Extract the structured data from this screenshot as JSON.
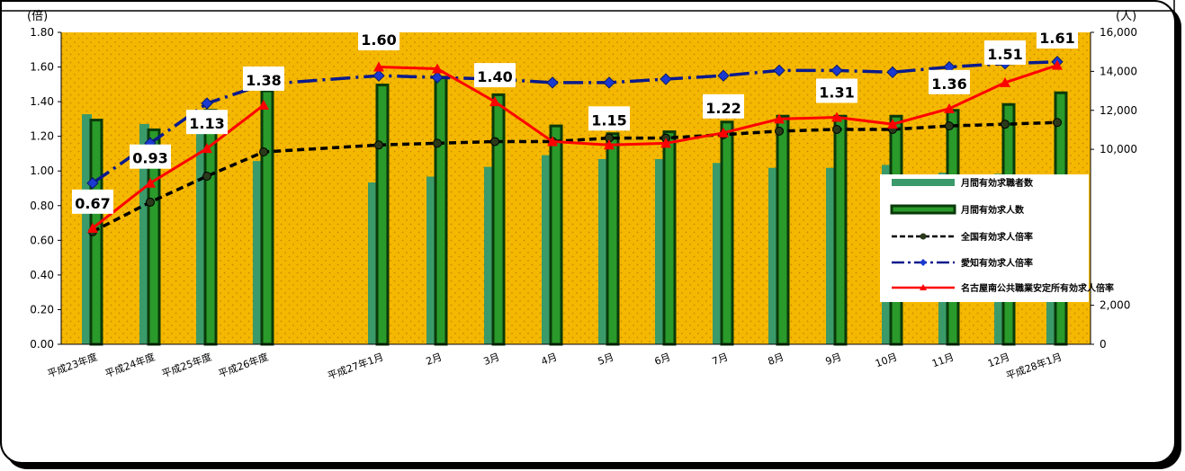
{
  "chart_data": {
    "type": "bar",
    "title": "",
    "left_axis": {
      "unit_label": "(倍)",
      "ylim": [
        0,
        1.8
      ],
      "ticks": [
        "0.00",
        "0.20",
        "0.40",
        "0.60",
        "0.80",
        "1.00",
        "1.20",
        "1.40",
        "1.60",
        "1.80"
      ]
    },
    "right_axis": {
      "unit_label": "(人)",
      "ylim": [
        0,
        16000
      ],
      "ticks": [
        "0",
        "2,000",
        "10,000",
        "12,000",
        "14,000",
        "16,000"
      ]
    },
    "categories": [
      "平成23年度",
      "平成24年度",
      "平成25年度",
      "平成26年度",
      "平成27年1月",
      "2月",
      "3月",
      "4月",
      "5月",
      "6月",
      "7月",
      "8月",
      "9月",
      "10月",
      "11月",
      "12月",
      "平成28年1月"
    ],
    "series": [
      {
        "name": "月間有効求職者数",
        "kind": "bar",
        "axis": "right",
        "color": "#3a9a6a",
        "values": [
          11800,
          11300,
          10800,
          9400,
          8300,
          8600,
          9100,
          9700,
          9500,
          9500,
          9300,
          9050,
          9050,
          9200,
          8800,
          8750,
          8700
        ]
      },
      {
        "name": "月間有効求人数",
        "kind": "bar",
        "axis": "right",
        "color": "#0a3a0a",
        "values": [
          11500,
          11000,
          12000,
          13000,
          13300,
          13700,
          12800,
          11200,
          10800,
          10900,
          11400,
          11700,
          11700,
          11700,
          12000,
          12300,
          12900
        ]
      },
      {
        "name": "全国有効求人倍率",
        "kind": "line",
        "axis": "left",
        "color": "#000000",
        "dash": "8,5",
        "values": [
          0.65,
          0.82,
          0.97,
          1.11,
          1.15,
          1.16,
          1.17,
          1.17,
          1.19,
          1.19,
          1.21,
          1.23,
          1.24,
          1.24,
          1.26,
          1.27,
          1.28
        ]
      },
      {
        "name": "愛知有効求人倍率",
        "kind": "line",
        "axis": "left",
        "color": "#0a1a8c",
        "dash": "22,6,3,6",
        "values": [
          0.93,
          1.16,
          1.39,
          1.5,
          1.55,
          1.54,
          1.53,
          1.51,
          1.51,
          1.53,
          1.55,
          1.58,
          1.58,
          1.57,
          1.6,
          1.62,
          1.63
        ]
      },
      {
        "name": "名古屋南公共職業安定所有効求人倍率",
        "kind": "line",
        "axis": "left",
        "color": "#ff0000",
        "dash": "",
        "values": [
          0.67,
          0.93,
          1.13,
          1.38,
          1.6,
          1.59,
          1.4,
          1.17,
          1.15,
          1.16,
          1.22,
          1.3,
          1.31,
          1.27,
          1.36,
          1.51,
          1.61
        ]
      }
    ],
    "data_labels": [
      {
        "index": 0,
        "text": "0.67"
      },
      {
        "index": 1,
        "text": "0.93"
      },
      {
        "index": 2,
        "text": "1.13"
      },
      {
        "index": 3,
        "text": "1.38"
      },
      {
        "index": 4,
        "text": "1.60"
      },
      {
        "index": 6,
        "text": "1.40"
      },
      {
        "index": 8,
        "text": "1.15"
      },
      {
        "index": 10,
        "text": "1.22"
      },
      {
        "index": 12,
        "text": "1.31"
      },
      {
        "index": 14,
        "text": "1.36"
      },
      {
        "index": 15,
        "text": "1.51"
      },
      {
        "index": 16,
        "text": "1.61"
      }
    ],
    "legend_position": "right",
    "grid": false,
    "background_color": "#f5b800"
  }
}
